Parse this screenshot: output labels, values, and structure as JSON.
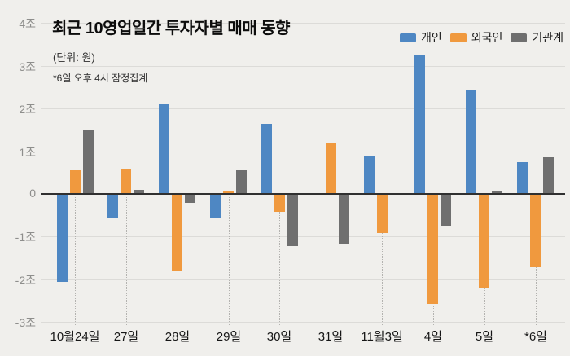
{
  "chart_data": {
    "type": "bar",
    "title": "최근 10영업일간 투자자별 매매 동향",
    "subtitle": "(단위: 원)",
    "note": "*6일 오후 4시 잠정집계",
    "unit": "조 (trillion KRW)",
    "categories": [
      "10월24일",
      "27일",
      "28일",
      "29일",
      "30일",
      "31일",
      "11월3일",
      "4일",
      "5일",
      "*6일"
    ],
    "series": [
      {
        "name": "개인",
        "color": "#4e87c3",
        "values": [
          -2.05,
          -0.55,
          2.1,
          -0.55,
          1.65,
          0,
          0.9,
          3.25,
          2.45,
          0.75
        ]
      },
      {
        "name": "외국인",
        "color": "#f0993e",
        "values": [
          0.55,
          0.6,
          -1.8,
          0.05,
          -0.4,
          1.2,
          -0.9,
          -2.55,
          -2.2,
          -1.7
        ]
      },
      {
        "name": "기관계",
        "color": "#6f6f6f",
        "values": [
          1.5,
          0.1,
          -0.2,
          0.55,
          -1.2,
          -1.15,
          0,
          -0.75,
          0.05,
          0.85
        ]
      }
    ],
    "y_ticks": [
      {
        "label": "4조",
        "value": 4
      },
      {
        "label": "3조",
        "value": 3
      },
      {
        "label": "2조",
        "value": 2
      },
      {
        "label": "1조",
        "value": 1
      },
      {
        "label": "0",
        "value": 0
      },
      {
        "label": "-1조",
        "value": -1
      },
      {
        "label": "-2조",
        "value": -2
      },
      {
        "label": "-3조",
        "value": -3
      }
    ],
    "ylim": [
      -3.5,
      4.3
    ],
    "grid": true,
    "legend_position": "top-right"
  },
  "colors": {
    "background": "#f0efec",
    "gridline": "#dcdbd8",
    "zero_line": "#303030",
    "individual_blue": "#4e87c3",
    "foreigner_orange": "#f0993e",
    "institution_gray": "#6f6f6f",
    "y_label": "#8e8e8c",
    "x_label": "#161616"
  }
}
